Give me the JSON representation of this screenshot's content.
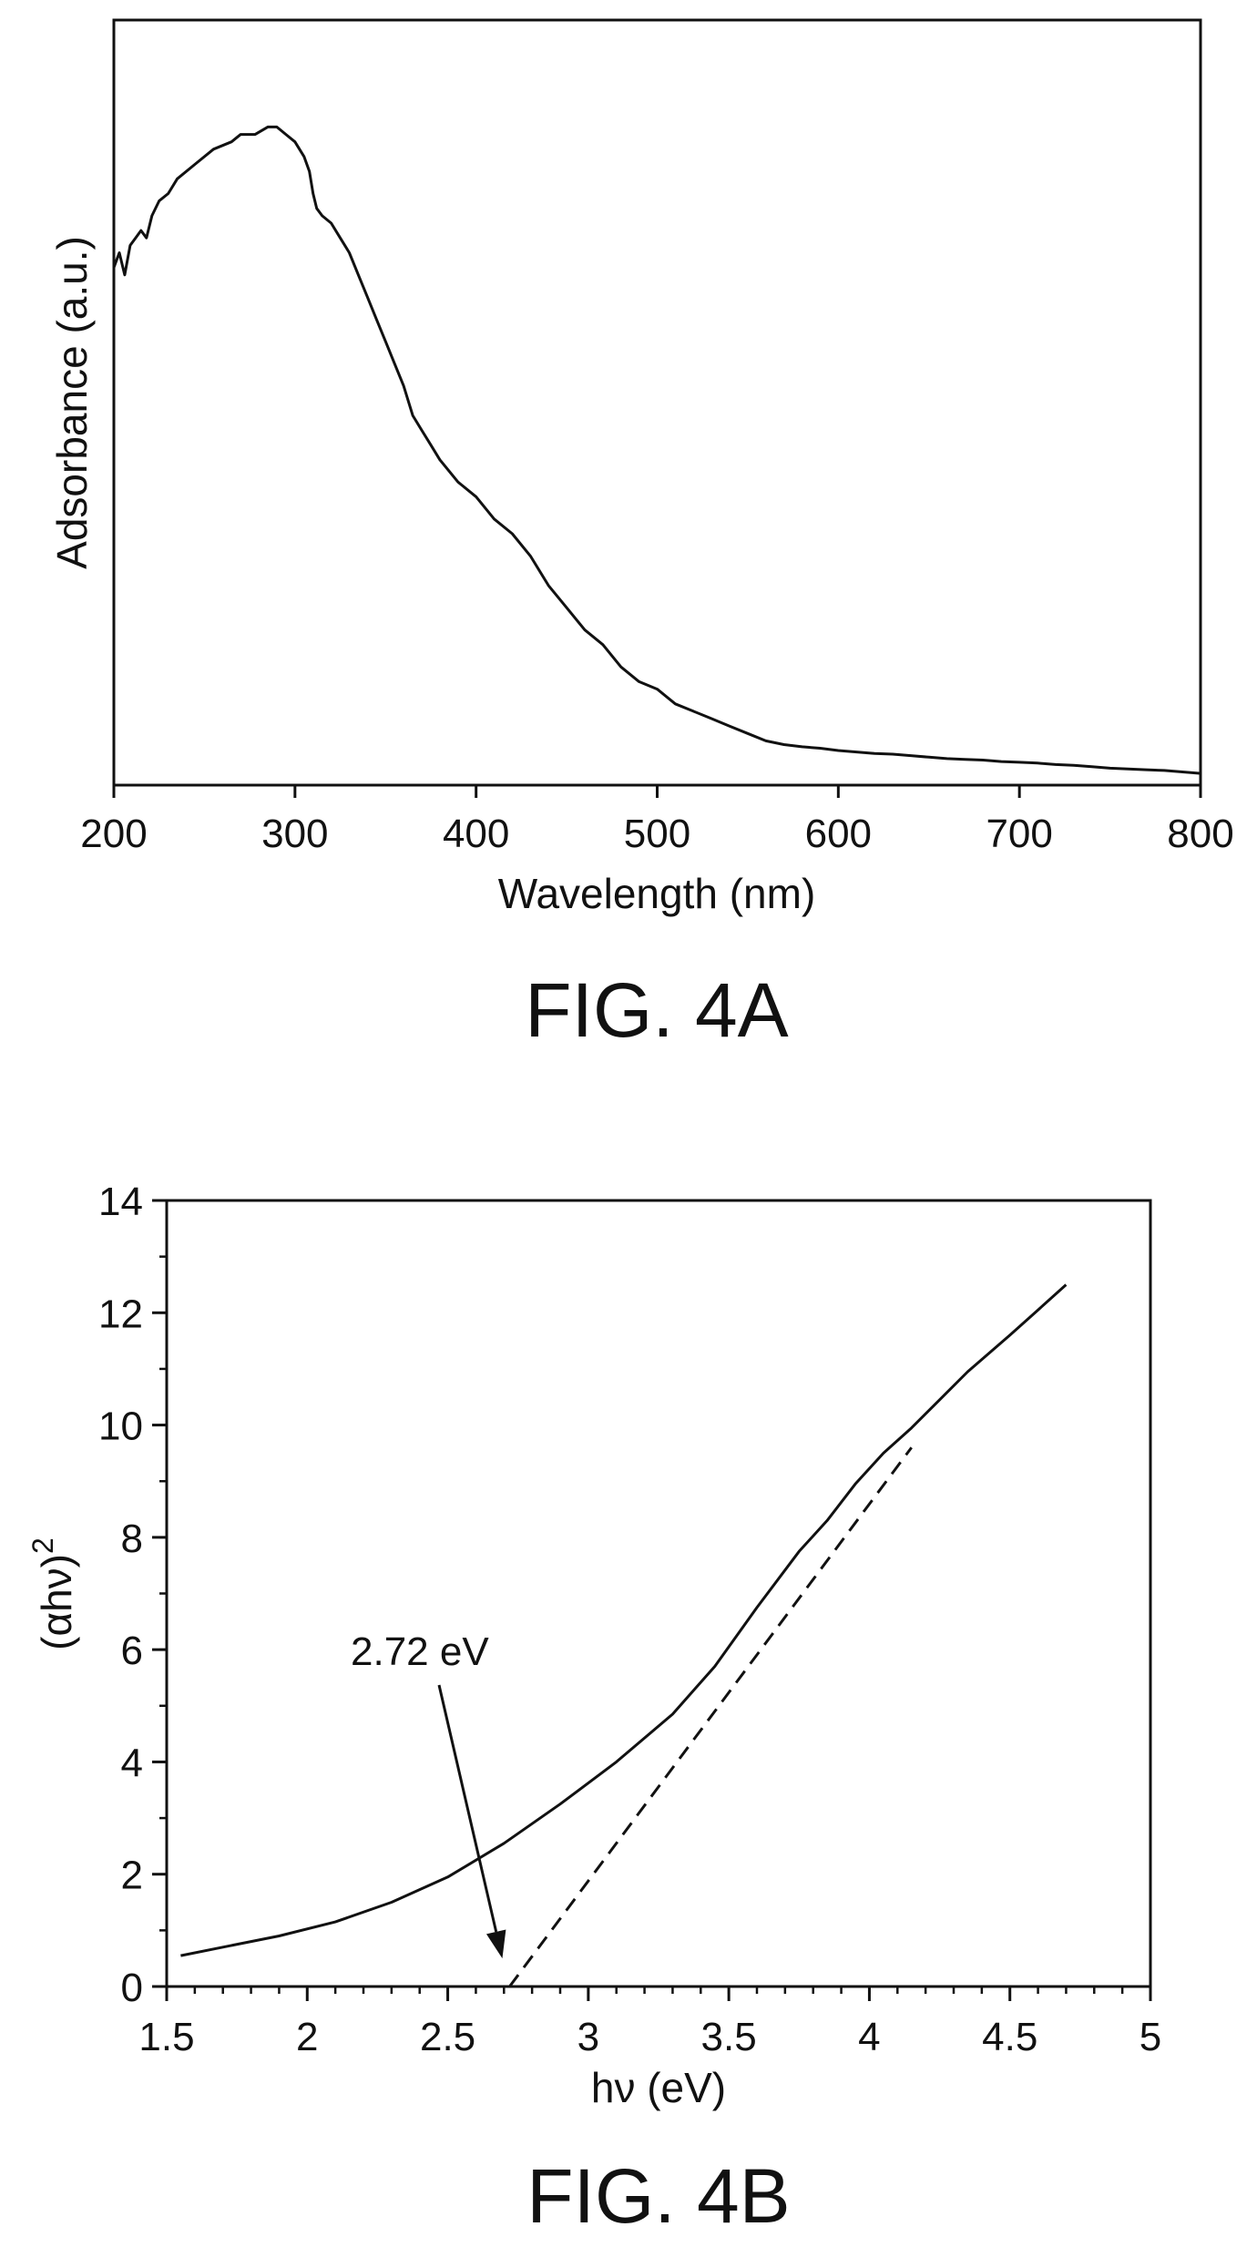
{
  "chart_data": [
    {
      "id": "fig4a",
      "type": "line",
      "caption": "FIG. 4A",
      "title": "",
      "xlabel": "Wavelength (nm)",
      "ylabel": "Adsorbance (a.u.)",
      "xlim": [
        200,
        800
      ],
      "ylim": [
        0,
        1
      ],
      "x_ticks": [
        200,
        300,
        400,
        500,
        600,
        700,
        800
      ],
      "x_tick_labels": [
        "200",
        "300",
        "400",
        "500",
        "600",
        "700",
        "800"
      ],
      "y_ticks": [],
      "grid": false,
      "legend": "none",
      "series": [
        {
          "name": "",
          "x": [
            200,
            203,
            206,
            209,
            212,
            215,
            218,
            221,
            225,
            230,
            235,
            245,
            255,
            265,
            270,
            278,
            285,
            290,
            295,
            300,
            305,
            308,
            310,
            312,
            315,
            320,
            325,
            330,
            335,
            340,
            345,
            350,
            355,
            360,
            365,
            370,
            375,
            380,
            390,
            400,
            410,
            420,
            430,
            440,
            450,
            460,
            470,
            480,
            490,
            500,
            510,
            520,
            530,
            540,
            550,
            560,
            570,
            580,
            590,
            600,
            610,
            620,
            630,
            640,
            650,
            660,
            670,
            680,
            690,
            700,
            710,
            720,
            730,
            740,
            750,
            760,
            770,
            780,
            790,
            800
          ],
          "y": [
            0.69,
            0.71,
            0.68,
            0.72,
            0.73,
            0.74,
            0.73,
            0.76,
            0.78,
            0.79,
            0.81,
            0.83,
            0.85,
            0.86,
            0.87,
            0.87,
            0.88,
            0.88,
            0.87,
            0.86,
            0.84,
            0.82,
            0.79,
            0.77,
            0.76,
            0.75,
            0.73,
            0.71,
            0.68,
            0.65,
            0.62,
            0.59,
            0.56,
            0.53,
            0.49,
            0.47,
            0.45,
            0.43,
            0.4,
            0.38,
            0.35,
            0.33,
            0.3,
            0.26,
            0.23,
            0.2,
            0.18,
            0.15,
            0.13,
            0.12,
            0.1,
            0.09,
            0.08,
            0.07,
            0.06,
            0.05,
            0.045,
            0.042,
            0.04,
            0.037,
            0.035,
            0.033,
            0.032,
            0.03,
            0.028,
            0.026,
            0.025,
            0.024,
            0.022,
            0.021,
            0.02,
            0.018,
            0.017,
            0.015,
            0.013,
            0.012,
            0.011,
            0.01,
            0.008,
            0.006
          ]
        }
      ]
    },
    {
      "id": "fig4b",
      "type": "line",
      "caption": "FIG. 4B",
      "title": "",
      "xlabel": "hν (eV)",
      "ylabel_base": "(αhν)",
      "ylabel_sup": "2",
      "xlim": [
        1.5,
        5
      ],
      "ylim": [
        0,
        14
      ],
      "x_ticks": [
        1.5,
        2,
        2.5,
        3,
        3.5,
        4,
        4.5,
        5
      ],
      "x_tick_labels": [
        "1.5",
        "2",
        "2.5",
        "3",
        "3.5",
        "4",
        "4.5",
        "5"
      ],
      "x_minor_step": 0.1,
      "y_ticks": [
        0,
        2,
        4,
        6,
        8,
        10,
        12,
        14
      ],
      "y_tick_labels": [
        "0",
        "2",
        "4",
        "6",
        "8",
        "10",
        "12",
        "14"
      ],
      "y_minor_step": 1,
      "grid": false,
      "legend": "none",
      "series": [
        {
          "name": "",
          "style": "solid",
          "x": [
            1.55,
            1.7,
            1.9,
            2.1,
            2.3,
            2.5,
            2.7,
            2.9,
            3.1,
            3.3,
            3.45,
            3.6,
            3.75,
            3.85,
            3.95,
            4.05,
            4.15,
            4.25,
            4.35,
            4.5,
            4.6,
            4.7
          ],
          "y": [
            0.55,
            0.7,
            0.9,
            1.15,
            1.5,
            1.95,
            2.55,
            3.25,
            4.0,
            4.85,
            5.7,
            6.75,
            7.75,
            8.3,
            8.95,
            9.5,
            9.95,
            10.45,
            10.95,
            11.6,
            12.05,
            12.5
          ]
        },
        {
          "name": "",
          "style": "dashed",
          "x": [
            2.72,
            4.15
          ],
          "y": [
            0,
            9.6
          ]
        }
      ],
      "annotation": {
        "text": "2.72 eV",
        "arrow_to_x": 2.72,
        "arrow_to_y": 0.5
      }
    }
  ]
}
